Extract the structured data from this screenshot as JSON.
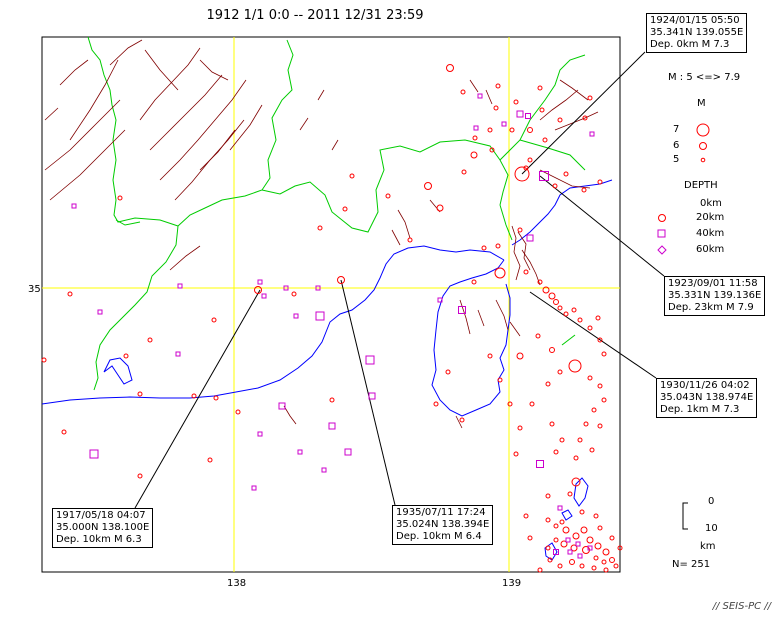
{
  "title": "1912 1/1 0:0 -- 2011 12/31 23:59",
  "axes": {
    "lat_tick": "35",
    "lon_ticks": [
      "138",
      "139"
    ]
  },
  "callouts": [
    {
      "date": "1924/01/15 05:50",
      "coords": "35.341N  139.055E",
      "depth_mag": "Dep. 0km   M 7.3"
    },
    {
      "date": "1923/09/01 11:58",
      "coords": "35.331N  139.136E",
      "depth_mag": "Dep. 23km   M 7.9"
    },
    {
      "date": "1930/11/26 04:02",
      "coords": "35.043N  138.974E",
      "depth_mag": "Dep. 1km   M 7.3"
    },
    {
      "date": "1917/05/18 04:07",
      "coords": "35.000N  138.100E",
      "depth_mag": "Dep. 10km   M 6.3"
    },
    {
      "date": "1935/07/11 17:24",
      "coords": "35.024N  138.394E",
      "depth_mag": "Dep. 10km   M 6.4"
    }
  ],
  "legend": {
    "mag_range": "M : 5 <=> 7.9",
    "mag_title": "M",
    "mag_levels": [
      "7",
      "6",
      "5"
    ],
    "depth_title": "DEPTH",
    "depth_levels": [
      "0km",
      "20km",
      "40km",
      "60km"
    ],
    "scale_top": "0",
    "scale_bottom": "10",
    "scale_unit": "km"
  },
  "count": "N= 251",
  "footer": "// SEIS-PC //",
  "colors": {
    "coast": "#0000ff",
    "prefecture": "#00cc00",
    "fault": "#800000",
    "grid": "#ffff00",
    "shallow": "#ff0000",
    "mid": "#cc00cc"
  }
}
